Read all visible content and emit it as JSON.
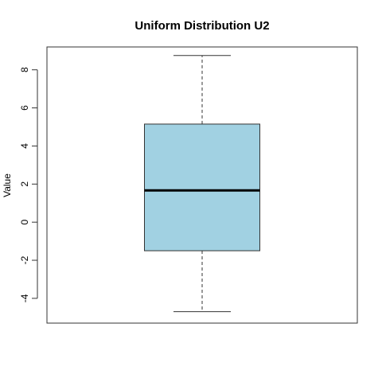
{
  "chart_data": {
    "type": "boxplot",
    "title": "Uniform Distribution U2",
    "xlabel": "",
    "ylabel": "Value",
    "ylim": [
      -5.3,
      9.2
    ],
    "y_ticks": [
      -4,
      -2,
      0,
      2,
      4,
      6,
      8
    ],
    "y_tick_labels": [
      "-4",
      "-2",
      "0",
      "2",
      "4",
      "6",
      "8"
    ],
    "grid": false,
    "box": {
      "min": -4.7,
      "q1": -1.5,
      "median": 1.67,
      "q3": 5.15,
      "max": 8.75
    },
    "colors": {
      "box_fill": "#a1d1e2",
      "box_stroke": "#333333",
      "median": "#000000",
      "whisker": "#333333",
      "frame": "#333333"
    }
  }
}
